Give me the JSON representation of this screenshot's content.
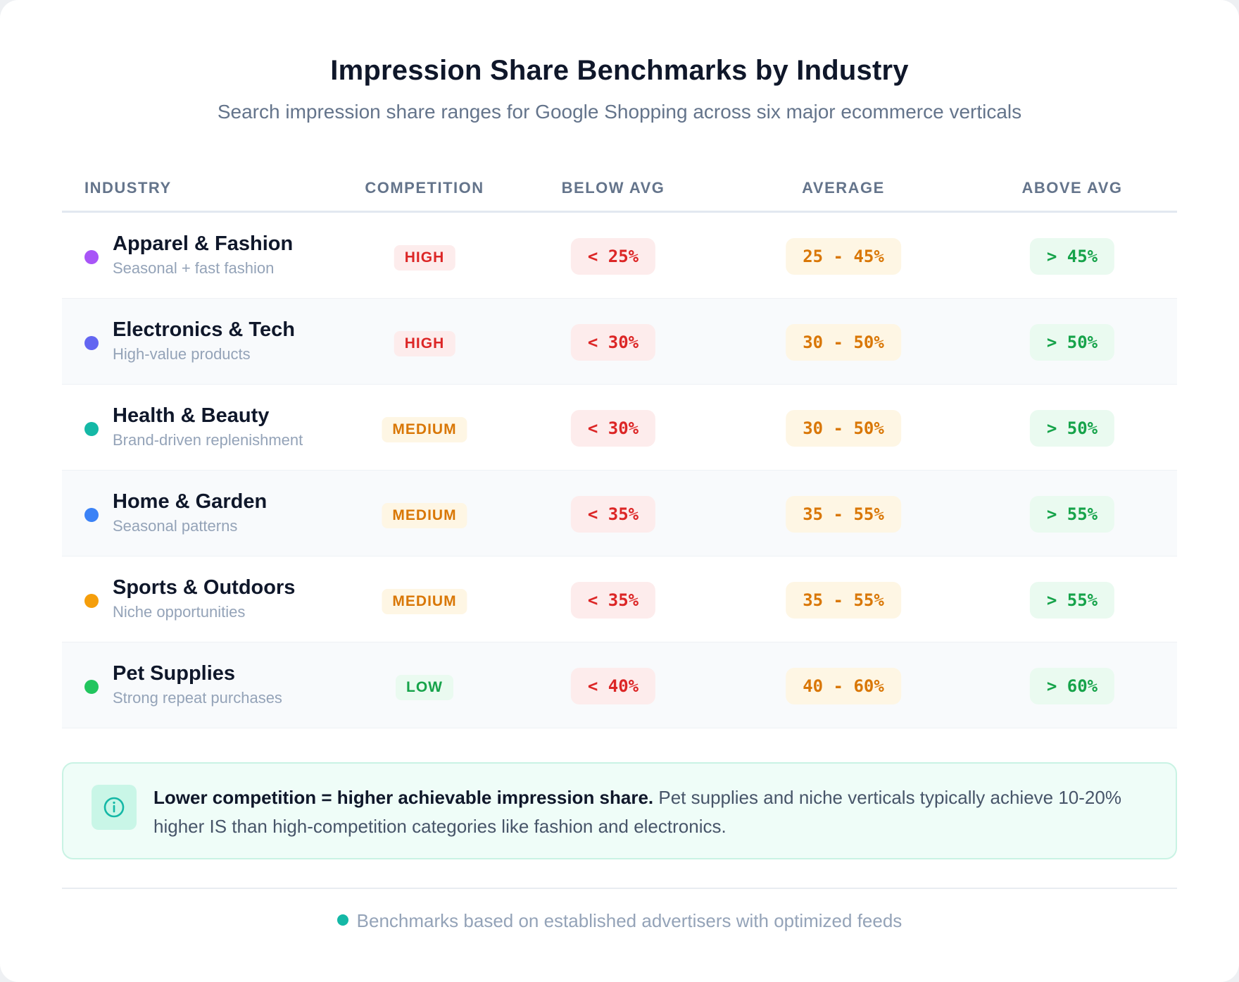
{
  "header": {
    "title": "Impression Share Benchmarks by Industry",
    "subtitle": "Search impression share ranges for Google Shopping across six major ecommerce verticals"
  },
  "table": {
    "columns": {
      "industry": "INDUSTRY",
      "competition": "COMPETITION",
      "below": "BELOW AVG",
      "average": "AVERAGE",
      "above": "ABOVE AVG"
    },
    "rows": [
      {
        "name": "Apparel & Fashion",
        "sub": "Seasonal + fast fashion",
        "dot_color": "#a855f7",
        "competition": "HIGH",
        "level": "high",
        "below": "< 25%",
        "average": "25 - 45%",
        "above": "> 45%"
      },
      {
        "name": "Electronics & Tech",
        "sub": "High-value products",
        "dot_color": "#6366f1",
        "competition": "HIGH",
        "level": "high",
        "below": "< 30%",
        "average": "30 - 50%",
        "above": "> 50%"
      },
      {
        "name": "Health & Beauty",
        "sub": "Brand-driven replenishment",
        "dot_color": "#14b8a6",
        "competition": "MEDIUM",
        "level": "medium",
        "below": "< 30%",
        "average": "30 - 50%",
        "above": "> 50%"
      },
      {
        "name": "Home & Garden",
        "sub": "Seasonal patterns",
        "dot_color": "#3b82f6",
        "competition": "MEDIUM",
        "level": "medium",
        "below": "< 35%",
        "average": "35 - 55%",
        "above": "> 55%"
      },
      {
        "name": "Sports & Outdoors",
        "sub": "Niche opportunities",
        "dot_color": "#f59e0b",
        "competition": "MEDIUM",
        "level": "medium",
        "below": "< 35%",
        "average": "35 - 55%",
        "above": "> 55%"
      },
      {
        "name": "Pet Supplies",
        "sub": "Strong repeat purchases",
        "dot_color": "#22c55e",
        "competition": "LOW",
        "level": "low",
        "below": "< 40%",
        "average": "40 - 60%",
        "above": "> 60%"
      }
    ]
  },
  "note": {
    "icon": "info-circle-icon",
    "bold": "Lower competition = higher achievable impression share.",
    "text": " Pet supplies and niche verticals typically achieve 10-20% higher IS than high-competition categories like fashion and electronics."
  },
  "footer": {
    "text": "Benchmarks based on established advertisers with optimized feeds"
  },
  "colors": {
    "accent": "#14b8a6",
    "high": "#dc2626",
    "medium": "#d97706",
    "low": "#16a34a"
  }
}
